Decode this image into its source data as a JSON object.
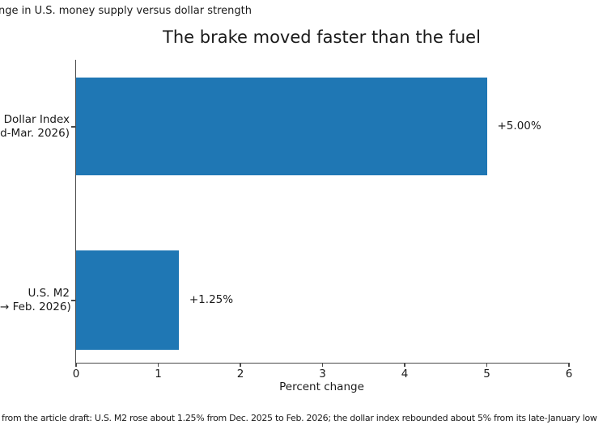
{
  "figure": {
    "background": "#ffffff",
    "text_color": "#1a1a1a",
    "top_note": "nge in U.S. money supply versus dollar strength",
    "footer_note": "from the article draft: U.S. M2 rose about 1.25% from Dec. 2025 to Feb. 2026; the dollar index rebounded about 5% from its late-January low"
  },
  "chart_data": {
    "type": "bar",
    "orientation": "horizontal",
    "title": "The brake moved faster than the fuel",
    "xlabel": "Percent change",
    "ylabel": "",
    "xlim": [
      0,
      6
    ],
    "xticks": [
      0,
      1,
      2,
      3,
      4,
      5,
      6
    ],
    "grid": false,
    "legend": false,
    "bar_color": "#1f77b4",
    "categories": [
      "Dollar Index\nd-Mar. 2026)",
      "U.S. M2\n→ Feb. 2026)"
    ],
    "category_lines": [
      [
        "Dollar Index",
        "d-Mar. 2026)"
      ],
      [
        "U.S. M2",
        "→ Feb. 2026)"
      ]
    ],
    "values": [
      5.0,
      1.25
    ],
    "bar_labels": [
      "+5.00%",
      "+1.25%"
    ]
  }
}
